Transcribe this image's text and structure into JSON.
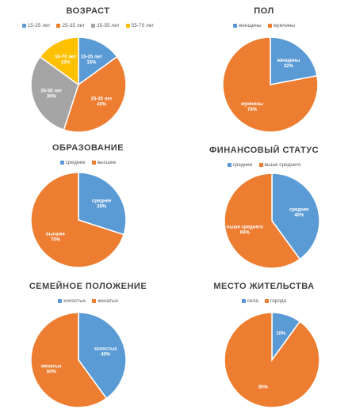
{
  "colors": {
    "blue": "#5b9bd5",
    "orange": "#ed7d31",
    "gray": "#a5a5a5",
    "yellow": "#ffc000"
  },
  "chart_data": [
    {
      "type": "pie",
      "title": "ВОЗРАСТ",
      "categories": [
        "15-25 лет",
        "25-35 лет",
        "35-55 лет",
        "55-70 лет"
      ],
      "values": [
        15,
        40,
        30,
        15
      ],
      "labels": [
        [
          "15-25 лет",
          "15%"
        ],
        [
          "25-35 лет",
          "40%"
        ],
        [
          "35-55 лет",
          "30%"
        ],
        [
          "55-70 лет",
          "15%"
        ]
      ],
      "colors": [
        "blue",
        "orange",
        "gray",
        "yellow"
      ],
      "legend": "top"
    },
    {
      "type": "pie",
      "title": "ПОЛ",
      "categories": [
        "женщины",
        "мужчины"
      ],
      "values": [
        22,
        78
      ],
      "labels": [
        [
          "женщины",
          "22%"
        ],
        [
          "мужчины",
          "78%"
        ]
      ],
      "colors": [
        "blue",
        "orange"
      ],
      "legend": "top"
    },
    {
      "type": "pie",
      "title": "ОБРАЗОВАНИЕ",
      "categories": [
        "среднее",
        "высшее"
      ],
      "values": [
        30,
        70
      ],
      "labels": [
        [
          "среднее",
          "30%"
        ],
        [
          "высшее",
          "70%"
        ]
      ],
      "colors": [
        "blue",
        "orange"
      ],
      "legend": "top"
    },
    {
      "type": "pie",
      "title": "ФИНАНСОВЫЙ СТАТУС",
      "categories": [
        "среднее",
        "выше среднего"
      ],
      "values": [
        40,
        60
      ],
      "labels": [
        [
          "среднее",
          "40%"
        ],
        [
          "выше среднего",
          "60%"
        ]
      ],
      "colors": [
        "blue",
        "orange"
      ],
      "legend": "top"
    },
    {
      "type": "pie",
      "title": "СЕМЕЙНОЕ ПОЛОЖЕНИЕ",
      "categories": [
        "холостых",
        "женатых"
      ],
      "values": [
        40,
        60
      ],
      "labels": [
        [
          "холостых",
          "40%"
        ],
        [
          "женатых",
          "60%"
        ]
      ],
      "colors": [
        "blue",
        "orange"
      ],
      "legend": "top"
    },
    {
      "type": "pie",
      "title": "МЕСТО ЖИТЕЛЬСТВА",
      "categories": [
        "села",
        "города"
      ],
      "values": [
        10,
        90
      ],
      "labels": [
        [
          "",
          "10%"
        ],
        [
          "",
          "90%"
        ]
      ],
      "colors": [
        "blue",
        "orange"
      ],
      "legend": "top"
    }
  ]
}
